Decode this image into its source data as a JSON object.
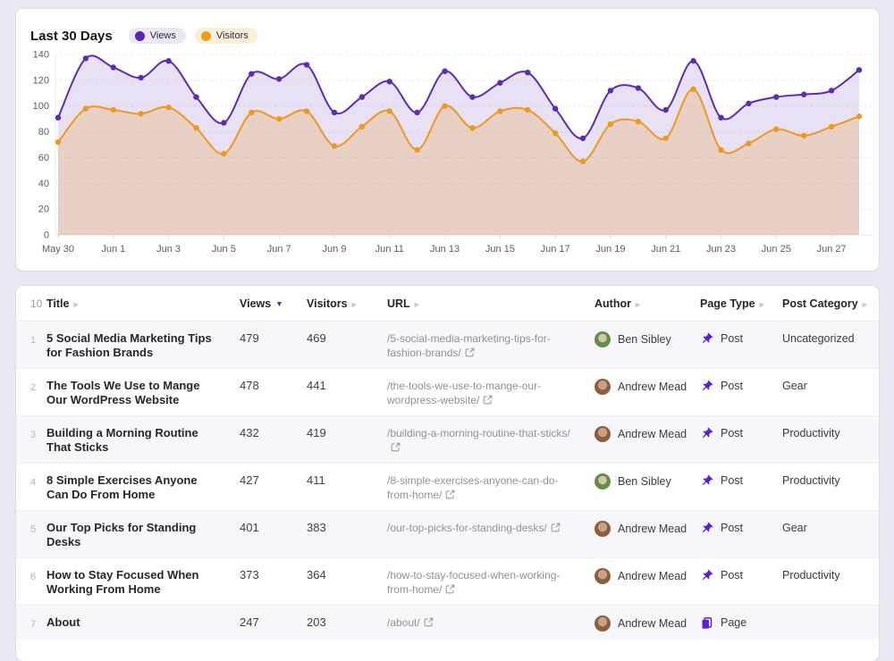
{
  "colors": {
    "page_bg": "#e9e9f1",
    "views_purple": "#5b24b2",
    "visitors_orange": "#ee9821",
    "views_fill": "rgba(95,44,176,0.14)",
    "visitors_fill": "rgba(238,152,33,0.22)",
    "views_pill_bg": "#e9e8f4",
    "visitors_pill_bg": "#fcefd8",
    "type_icon_purple": "#5a20d2",
    "sort_active": "#3a3494"
  },
  "chart": {
    "title": "Last 30 Days",
    "legend": [
      {
        "label": "Views",
        "dot_color": "#5b24b2",
        "pill_bg": "#e9e8f4"
      },
      {
        "label": "Visitors",
        "dot_color": "#f09b22",
        "pill_bg": "#fcefd8"
      }
    ]
  },
  "chart_data": {
    "type": "area",
    "title": "Last 30 Days",
    "x": [
      "May 30",
      "May 31",
      "Jun 1",
      "Jun 2",
      "Jun 3",
      "Jun 4",
      "Jun 5",
      "Jun 6",
      "Jun 7",
      "Jun 8",
      "Jun 9",
      "Jun 10",
      "Jun 11",
      "Jun 12",
      "Jun 13",
      "Jun 14",
      "Jun 15",
      "Jun 16",
      "Jun 17",
      "Jun 18",
      "Jun 19",
      "Jun 20",
      "Jun 21",
      "Jun 22",
      "Jun 23",
      "Jun 24",
      "Jun 25",
      "Jun 26",
      "Jun 27",
      "Jun 28"
    ],
    "xtick_every": 2,
    "ylim": [
      0,
      140
    ],
    "ytick_step": 20,
    "grid": "horizontal-dashed",
    "legend_position": "top-left",
    "series": [
      {
        "name": "Views",
        "color": "#5f2cb0",
        "fill": "rgba(95,44,176,0.14)",
        "values": [
          91,
          137,
          130,
          122,
          135,
          107,
          87,
          125,
          121,
          132,
          95,
          107,
          119,
          95,
          127,
          107,
          118,
          126,
          98,
          75,
          112,
          114,
          97,
          135,
          91,
          102,
          107,
          109,
          112,
          128
        ]
      },
      {
        "name": "Visitors",
        "color": "#ee9821",
        "fill": "rgba(238,152,33,0.22)",
        "values": [
          72,
          98,
          97,
          94,
          99,
          83,
          63,
          95,
          90,
          96,
          69,
          84,
          96,
          66,
          100,
          83,
          96,
          97,
          79,
          57,
          86,
          88,
          75,
          113,
          66,
          71,
          82,
          77,
          84,
          92
        ]
      }
    ]
  },
  "table": {
    "page_size": "10",
    "sorted_column": "Views",
    "sort_direction": "desc",
    "columns": [
      {
        "key": "title",
        "label": "Title"
      },
      {
        "key": "views",
        "label": "Views"
      },
      {
        "key": "visitors",
        "label": "Visitors"
      },
      {
        "key": "url",
        "label": "URL"
      },
      {
        "key": "author",
        "label": "Author"
      },
      {
        "key": "type",
        "label": "Page Type"
      },
      {
        "key": "category",
        "label": "Post Category"
      }
    ],
    "rows": [
      {
        "n": "1",
        "title": "5 Social Media Marketing Tips for Fashion Brands",
        "views": "479",
        "visitors": "469",
        "url": "/5-social-media-marketing-tips-for-fashion-brands/",
        "author": "Ben Sibley",
        "avatar": "ben-sibley",
        "type": "Post",
        "category": "Uncategorized"
      },
      {
        "n": "2",
        "title": "The Tools We Use to Mange Our WordPress Website",
        "views": "478",
        "visitors": "441",
        "url": "/the-tools-we-use-to-mange-our-wordpress-website/",
        "author": "Andrew Mead",
        "avatar": "andrew-mead",
        "type": "Post",
        "category": "Gear"
      },
      {
        "n": "3",
        "title": "Building a Morning Routine That Sticks",
        "views": "432",
        "visitors": "419",
        "url": "/building-a-morning-routine-that-sticks/",
        "author": "Andrew Mead",
        "avatar": "andrew-mead",
        "type": "Post",
        "category": "Productivity"
      },
      {
        "n": "4",
        "title": "8 Simple Exercises Anyone Can Do From Home",
        "views": "427",
        "visitors": "411",
        "url": "/8-simple-exercises-anyone-can-do-from-home/",
        "author": "Ben Sibley",
        "avatar": "ben-sibley",
        "type": "Post",
        "category": "Productivity"
      },
      {
        "n": "5",
        "title": "Our Top Picks for Standing Desks",
        "views": "401",
        "visitors": "383",
        "url": "/our-top-picks-for-standing-desks/",
        "author": "Andrew Mead",
        "avatar": "andrew-mead",
        "type": "Post",
        "category": "Gear"
      },
      {
        "n": "6",
        "title": "How to Stay Focused When Working From Home",
        "views": "373",
        "visitors": "364",
        "url": "/how-to-stay-focused-when-working-from-home/",
        "author": "Andrew Mead",
        "avatar": "andrew-mead",
        "type": "Post",
        "category": "Productivity"
      },
      {
        "n": "7",
        "title": "About",
        "views": "247",
        "visitors": "203",
        "url": "/about/",
        "author": "Andrew Mead",
        "avatar": "andrew-mead",
        "type": "Page",
        "category": ""
      }
    ]
  }
}
